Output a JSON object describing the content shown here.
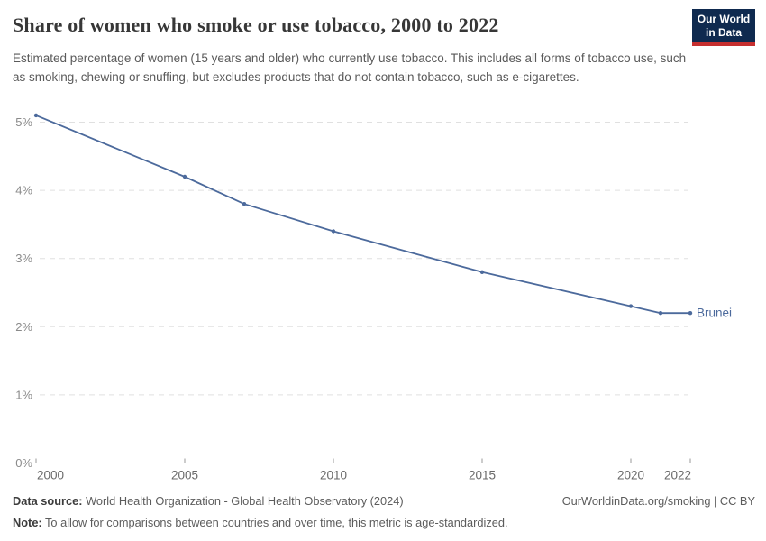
{
  "logo": {
    "line1": "Our World",
    "line2": "in Data"
  },
  "chart_data": {
    "type": "line",
    "title": "Share of women who smoke or use tobacco, 2000 to 2022",
    "subtitle": "Estimated percentage of women (15 years and older) who currently use tobacco. This includes all forms of tobacco use, such as smoking, chewing or snuffing, but excludes products that do not contain tobacco, such as e-cigarettes.",
    "x": [
      2000,
      2005,
      2007,
      2010,
      2015,
      2020,
      2021,
      2022
    ],
    "series": [
      {
        "name": "Brunei",
        "color": "#4C6A9C",
        "values": [
          5.1,
          4.2,
          3.8,
          3.4,
          2.8,
          2.3,
          2.2,
          2.2
        ]
      }
    ],
    "xlim": [
      2000,
      2022
    ],
    "ylim": [
      0,
      5
    ],
    "xticks": [
      2000,
      2005,
      2010,
      2015,
      2020,
      2022
    ],
    "xtick_labels": [
      "2000",
      "2005",
      "2010",
      "2015",
      "2020",
      "2022"
    ],
    "yticks": [
      0,
      1,
      2,
      3,
      4,
      5
    ],
    "ytick_labels": [
      "0%",
      "1%",
      "2%",
      "3%",
      "4%",
      "5%"
    ],
    "grid": "horizontal-dashed",
    "legend_position": "end-of-line",
    "end_label": "Brunei",
    "xlabel": "",
    "ylabel": ""
  },
  "footer": {
    "data_source_label": "Data source:",
    "data_source_text": " World Health Organization - Global Health Observatory (2024)",
    "note_label": "Note:",
    "note_text": " To allow for comparisons between countries and over time, this metric is age-standardized.",
    "link_text": "OurWorldinData.org/smoking | CC BY"
  },
  "colors": {
    "line": "#4C6A9C",
    "grid": "#e0e0e0",
    "axis": "#9a9a9a",
    "xtick_label": "#696969",
    "ytick_label": "#8a8a8a",
    "logo_bg": "#0f2a4f",
    "logo_stripe": "#c62f2f",
    "title": "#373737",
    "subtitle": "#5a5a5a"
  }
}
